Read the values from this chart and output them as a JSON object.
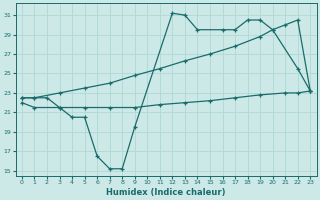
{
  "xlabel": "Humidex (Indice chaleur)",
  "xlim": [
    -0.5,
    23.5
  ],
  "ylim": [
    14.5,
    32.2
  ],
  "xticks": [
    0,
    1,
    2,
    3,
    4,
    5,
    6,
    7,
    8,
    9,
    10,
    11,
    12,
    13,
    14,
    15,
    16,
    17,
    18,
    19,
    20,
    21,
    22,
    23
  ],
  "yticks": [
    15,
    17,
    19,
    21,
    23,
    25,
    27,
    29,
    31
  ],
  "bg_color": "#cce9e7",
  "line_color": "#1a6b6b",
  "grid_color": "#b0d8d5",
  "line1_x": [
    0,
    1,
    2,
    3,
    4,
    5,
    6,
    7,
    8,
    9,
    12,
    13,
    14,
    16,
    17,
    18,
    19,
    20,
    22,
    23
  ],
  "line1_y": [
    22.5,
    22.5,
    22.5,
    21.5,
    20.5,
    20.5,
    16.5,
    15.2,
    15.2,
    19.5,
    31.2,
    31.0,
    29.5,
    29.5,
    29.5,
    30.5,
    30.5,
    29.5,
    25.5,
    23.2
  ],
  "line2_x": [
    0,
    1,
    3,
    5,
    7,
    9,
    11,
    13,
    15,
    17,
    19,
    20,
    21,
    22,
    23
  ],
  "line2_y": [
    22.5,
    22.5,
    23.0,
    23.5,
    24.0,
    24.8,
    25.5,
    26.3,
    27.0,
    27.8,
    28.8,
    29.5,
    30.0,
    30.5,
    23.2
  ],
  "line3_x": [
    0,
    1,
    3,
    5,
    7,
    9,
    11,
    13,
    15,
    17,
    19,
    21,
    22,
    23
  ],
  "line3_y": [
    22.0,
    21.5,
    21.5,
    21.5,
    21.5,
    21.5,
    21.8,
    22.0,
    22.2,
    22.5,
    22.8,
    23.0,
    23.0,
    23.2
  ]
}
